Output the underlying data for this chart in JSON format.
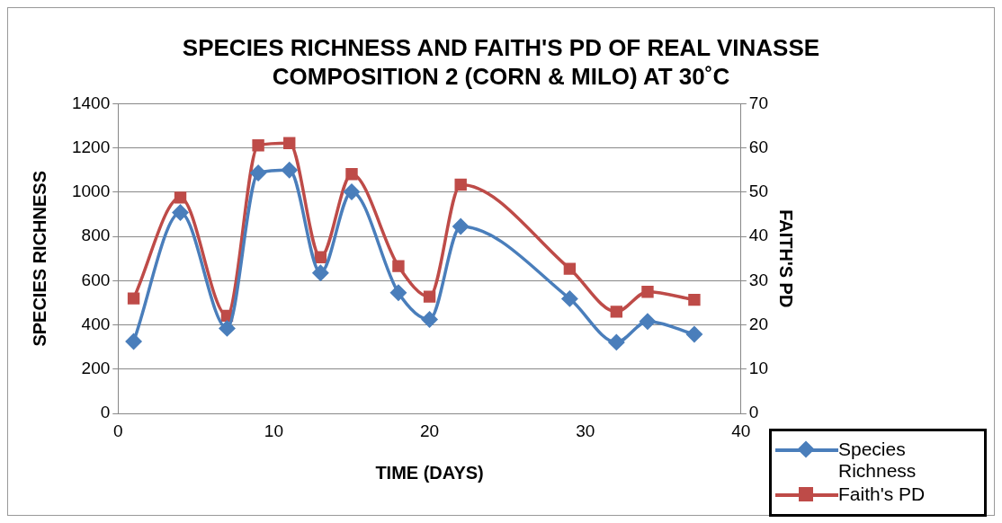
{
  "chart_data": {
    "type": "line",
    "title": "SPECIES RICHNESS AND FAITH'S PD OF REAL VINASSE COMPOSITION 2 (CORN & MILO) AT 30˚C",
    "xlabel": "TIME (DAYS)",
    "ylabel": "SPECIES RICHNESS",
    "y2label": "FAITH'S PD",
    "x": [
      1,
      4,
      7,
      9,
      11,
      13,
      15,
      18,
      20,
      22,
      29,
      32,
      34,
      37
    ],
    "series": [
      {
        "name": "Species Richness",
        "color": "#4a7ebb",
        "marker": "diamond",
        "values": [
          326,
          908,
          385,
          1087,
          1100,
          635,
          1002,
          546,
          425,
          845,
          519,
          322,
          416,
          358
        ]
      },
      {
        "name": "Faith's PD",
        "color": "#be4b48",
        "marker": "square",
        "axis": "y2",
        "values": [
          26,
          48.8,
          22.1,
          60.6,
          61.1,
          35.3,
          54.1,
          33.3,
          26.4,
          51.7,
          32.7,
          23,
          27.5,
          25.7
        ]
      }
    ],
    "xlim": [
      0,
      40
    ],
    "xticks": [
      0,
      10,
      20,
      30,
      40
    ],
    "ylim": [
      0,
      1400
    ],
    "yticks": [
      0,
      200,
      400,
      600,
      800,
      1000,
      1200,
      1400
    ],
    "y2lim": [
      0,
      70
    ],
    "y2ticks": [
      0,
      10,
      20,
      30,
      40,
      50,
      60,
      70
    ],
    "grid": "y",
    "legend": "bottom right"
  }
}
